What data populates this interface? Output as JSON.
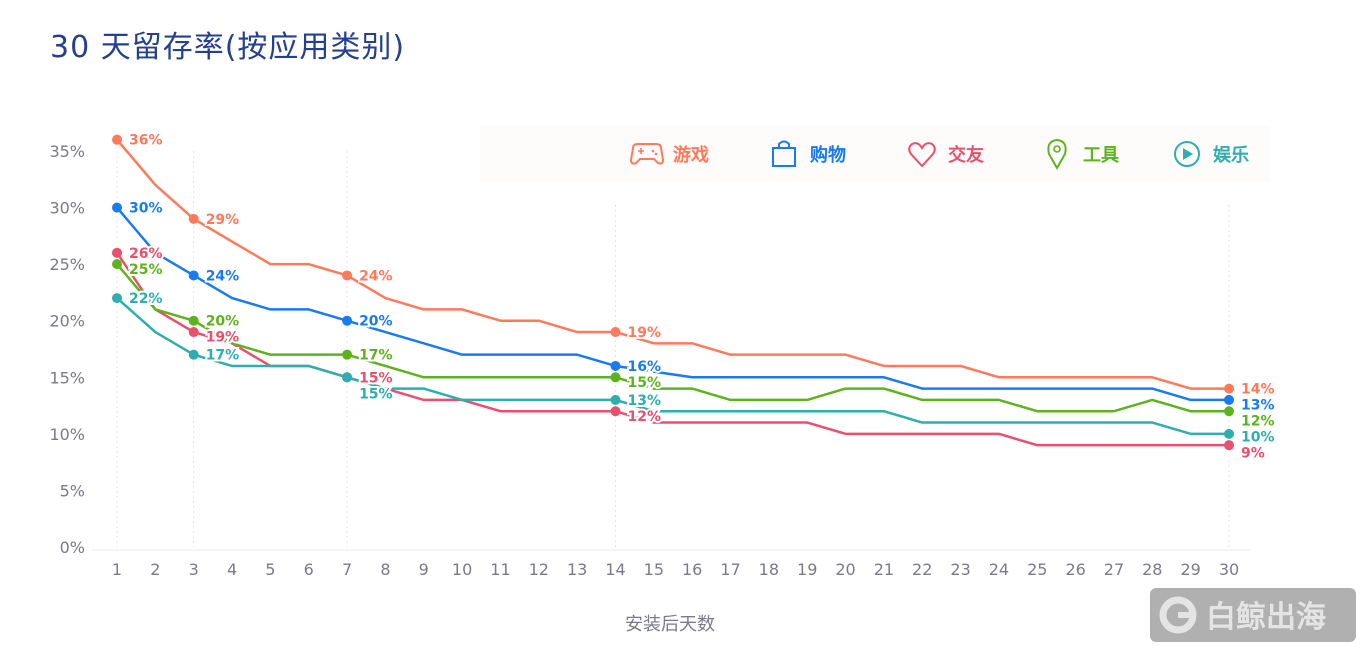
{
  "title": "30 天留存率(按应用类别)",
  "chart_data": {
    "type": "line",
    "title": "30 天留存率(按应用类别)",
    "xlabel": "安装后天数",
    "ylabel": "",
    "x": [
      1,
      2,
      3,
      4,
      5,
      6,
      7,
      8,
      9,
      10,
      11,
      12,
      13,
      14,
      15,
      16,
      17,
      18,
      19,
      20,
      21,
      22,
      23,
      24,
      25,
      26,
      27,
      28,
      29,
      30
    ],
    "ylim": [
      0,
      35
    ],
    "yticks": [
      0,
      5,
      10,
      15,
      20,
      25,
      30,
      35
    ],
    "ytick_labels": [
      "0%",
      "5%",
      "10%",
      "15%",
      "20%",
      "25%",
      "30%",
      "35%"
    ],
    "labeled_days": [
      1,
      3,
      7,
      14,
      30
    ],
    "highlight_gridlines_days": [
      1,
      3,
      7,
      14,
      30
    ],
    "legend_placement": "top-right",
    "series": [
      {
        "name": "游戏",
        "color": "#ff7a5c",
        "icon": "gamepad-icon",
        "values": [
          36,
          32,
          29,
          27,
          25,
          25,
          24,
          22,
          21,
          21,
          20,
          20,
          19,
          19,
          18,
          18,
          17,
          17,
          17,
          17,
          16,
          16,
          16,
          15,
          15,
          15,
          15,
          15,
          14,
          14
        ]
      },
      {
        "name": "购物",
        "color": "#1a7bf0",
        "icon": "shopping-bag-icon",
        "values": [
          30,
          26,
          24,
          22,
          21,
          21,
          20,
          19,
          18,
          17,
          17,
          17,
          17,
          16,
          15.5,
          15,
          15,
          15,
          15,
          15,
          15,
          14,
          14,
          14,
          14,
          14,
          14,
          14,
          13,
          13
        ]
      },
      {
        "name": "交友",
        "color": "#e8506e",
        "icon": "heart-icon",
        "values": [
          26,
          21,
          19,
          18,
          16,
          16,
          15,
          14,
          13,
          13,
          12,
          12,
          12,
          12,
          11,
          11,
          11,
          11,
          11,
          10,
          10,
          10,
          10,
          10,
          9,
          9,
          9,
          9,
          9,
          9
        ]
      },
      {
        "name": "工具",
        "color": "#5db31e",
        "icon": "map-pin-icon",
        "values": [
          25,
          21,
          20,
          18,
          17,
          17,
          17,
          16,
          15,
          15,
          15,
          15,
          15,
          15,
          14,
          14,
          13,
          13,
          13,
          14,
          14,
          13,
          13,
          13,
          12,
          12,
          12,
          13,
          12,
          12
        ]
      },
      {
        "name": "娱乐",
        "color": "#2eaeae",
        "icon": "play-circle-icon",
        "values": [
          22,
          19,
          17,
          16,
          16,
          16,
          15,
          14,
          14,
          13,
          13,
          13,
          13,
          13,
          12,
          12,
          12,
          12,
          12,
          12,
          12,
          11,
          11,
          11,
          11,
          11,
          11,
          11,
          10,
          10
        ]
      }
    ]
  },
  "watermark": "白鲸出海"
}
